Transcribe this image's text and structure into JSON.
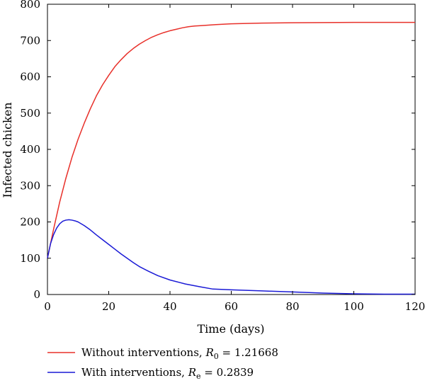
{
  "chart_data": {
    "type": "line",
    "xlabel": "Time (days)",
    "ylabel": "Infected chicken",
    "xlim": [
      0,
      120
    ],
    "ylim": [
      0,
      800
    ],
    "xticks": [
      "0",
      "20",
      "40",
      "60",
      "80",
      "100",
      "120"
    ],
    "yticks": [
      "0",
      "100",
      "200",
      "300",
      "400",
      "500",
      "600",
      "700",
      "800"
    ],
    "grid": false,
    "legend_position": "bottom",
    "series": [
      {
        "key": "without",
        "name": "Without interventions, R0 = 1.21668",
        "legend": {
          "prefix": "Without interventions, ",
          "symbol": "R",
          "sub": "0",
          "suffix": " = 1.21668"
        },
        "color": "#e8302a",
        "x": [
          0,
          2,
          4,
          6,
          8,
          10,
          12,
          14,
          16,
          18,
          20,
          22,
          24,
          26,
          28,
          30,
          32,
          34,
          36,
          38,
          40,
          42,
          44,
          46,
          48,
          50,
          55,
          60,
          70,
          80,
          90,
          100,
          110,
          120
        ],
        "y": [
          100,
          180,
          255,
          320,
          378,
          428,
          472,
          512,
          548,
          578,
          604,
          628,
          647,
          664,
          678,
          690,
          700,
          709,
          716,
          722,
          727,
          731,
          735,
          738,
          740,
          741,
          744,
          746,
          748,
          749,
          749.5,
          750,
          750,
          750
        ]
      },
      {
        "key": "with",
        "name": "With interventions, Re = 0.2839",
        "legend": {
          "prefix": "With interventions, ",
          "symbol": "R",
          "sub": "e",
          "suffix": " = 0.2839"
        },
        "color": "#1a1ad6",
        "x": [
          0,
          1,
          2,
          3,
          4,
          5,
          6,
          7,
          8,
          9,
          10,
          12,
          14,
          16,
          18,
          20,
          22,
          24,
          26,
          28,
          30,
          33,
          36,
          40,
          45,
          50,
          54,
          60,
          70,
          80,
          90,
          100,
          110,
          120
        ],
        "y": [
          100,
          140,
          165,
          183,
          195,
          202,
          205,
          206,
          205,
          203,
          200,
          190,
          178,
          164,
          151,
          138,
          125,
          112,
          100,
          88,
          77,
          64,
          52,
          40,
          29,
          21,
          15,
          13,
          10,
          7,
          4,
          2,
          1,
          1
        ]
      }
    ]
  }
}
